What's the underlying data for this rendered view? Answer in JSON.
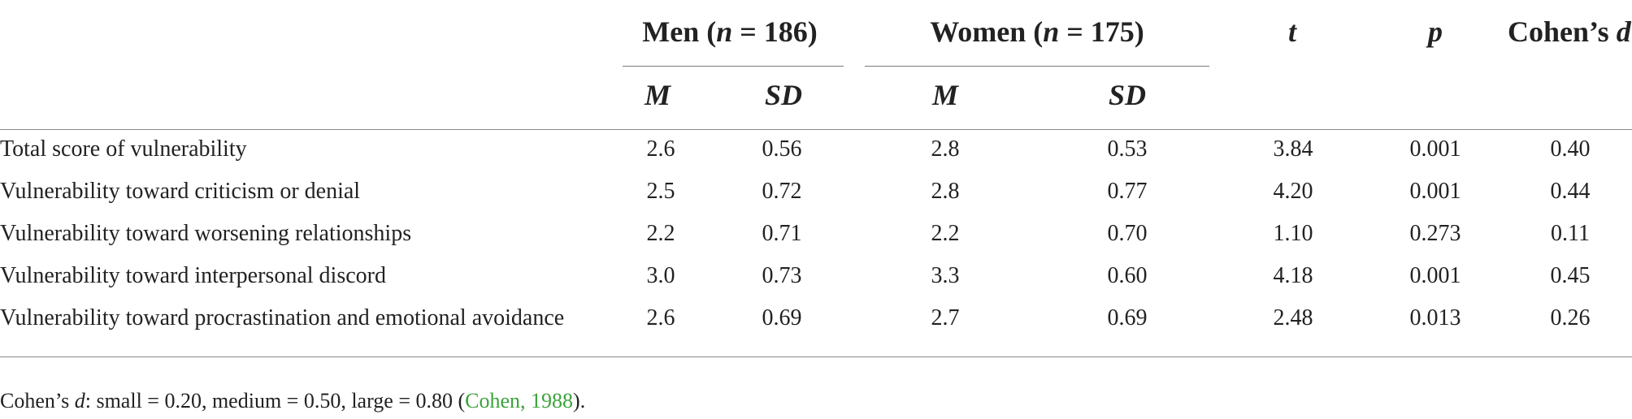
{
  "header": {
    "men_label": "Men",
    "men_n_var": "n",
    "men_n_rest": " = 186)",
    "women_label": "Women",
    "women_n_var": "n",
    "women_n_rest": " = 175)",
    "t": "t",
    "p": "p",
    "cohen_prefix": "Cohen’s ",
    "cohen_d": "d",
    "men_m": "M",
    "men_sd": "SD",
    "women_m": "M",
    "women_sd": "SD"
  },
  "rows": [
    {
      "label": "Total score of vulnerability",
      "men_m": "2.6",
      "men_sd": "0.56",
      "women_m": "2.8",
      "women_sd": "0.53",
      "t": "3.84",
      "p": "0.001",
      "d": "0.40"
    },
    {
      "label": "Vulnerability toward criticism or denial",
      "men_m": "2.5",
      "men_sd": "0.72",
      "women_m": "2.8",
      "women_sd": "0.77",
      "t": "4.20",
      "p": "0.001",
      "d": "0.44"
    },
    {
      "label": "Vulnerability toward worsening relationships",
      "men_m": "2.2",
      "men_sd": "0.71",
      "women_m": "2.2",
      "women_sd": "0.70",
      "t": "1.10",
      "p": "0.273",
      "d": "0.11"
    },
    {
      "label": "Vulnerability toward interpersonal discord",
      "men_m": "3.0",
      "men_sd": "0.73",
      "women_m": "3.3",
      "women_sd": "0.60",
      "t": "4.18",
      "p": "0.001",
      "d": "0.45"
    },
    {
      "label": "Vulnerability toward procrastination and emotional avoidance",
      "men_m": "2.6",
      "men_sd": "0.69",
      "women_m": "2.7",
      "women_sd": "0.69",
      "t": "2.48",
      "p": "0.013",
      "d": "0.26"
    }
  ],
  "footnote": {
    "prefix": "Cohen’s ",
    "d": "d",
    "text": ": small = 0.20, medium = 0.50, large = 0.80 (",
    "citation": "Cohen, 1988",
    "suffix": ")."
  },
  "colors": {
    "link": "#3aa33a",
    "rule": "#7a7a7a",
    "text": "#222222"
  }
}
